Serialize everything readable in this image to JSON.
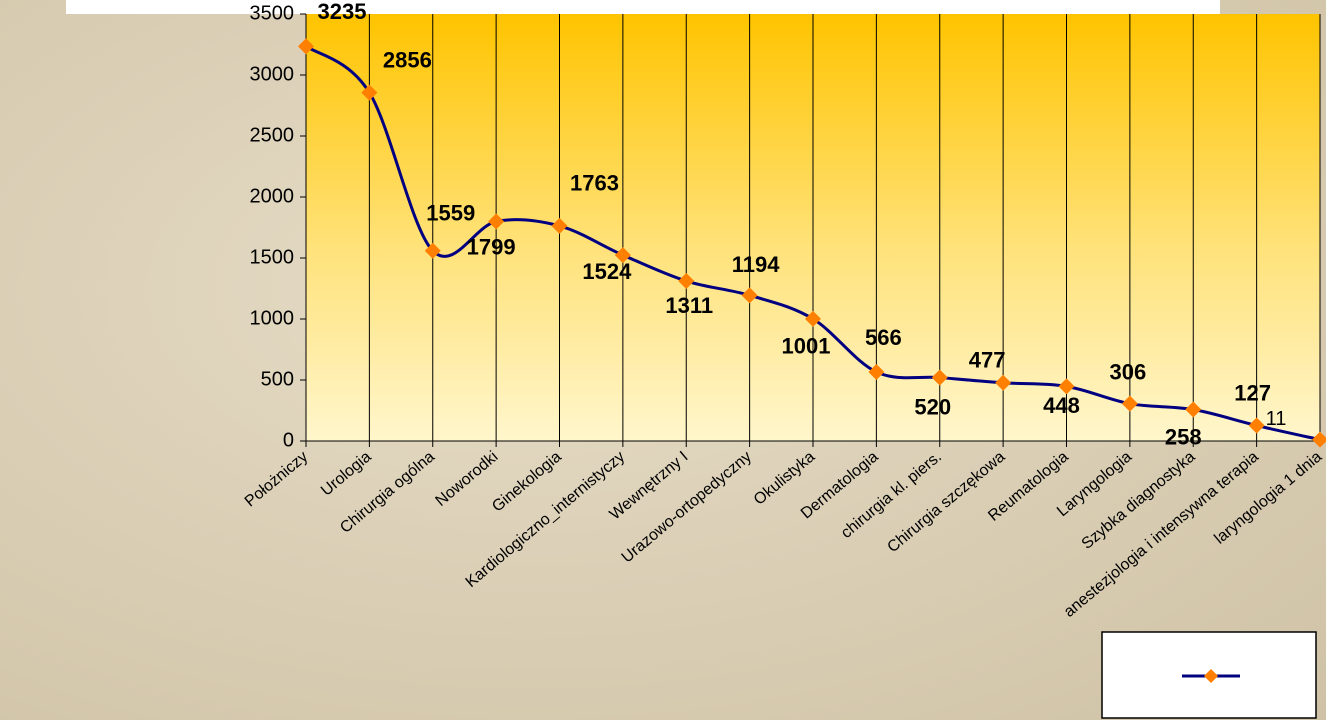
{
  "chart_data": {
    "type": "line",
    "categories": [
      "Położniczy",
      "Urologia",
      "Chirurgia ogólna",
      "Noworodki",
      "Ginekologia",
      "Kardiologiczno_internistyczy",
      "Wewnętrzny I",
      "Urazowo-ortopedyczny",
      "Okulistyka",
      "Dermatologia",
      "chirurgia kl. piers.",
      "Chirurgia szczękowa",
      "Reumatologia",
      "Laryngologia",
      "Szybka diagnostyka",
      "anestezjologia i intensywna terapia",
      "laryngologia 1 dnia"
    ],
    "series": [
      {
        "color": "#000080",
        "marker_color": "#ff7f00",
        "values": [
          3235,
          2856,
          1559,
          1799,
          1763,
          1524,
          1311,
          1194,
          1001,
          566,
          520,
          477,
          448,
          306,
          258,
          127,
          11
        ]
      }
    ],
    "ylim": [
      0,
      3500
    ],
    "yticks": [
      0,
      500,
      1000,
      1500,
      2000,
      2500,
      3000,
      3500
    ],
    "grid": true,
    "smooth": true,
    "legend": "bottom-right"
  }
}
